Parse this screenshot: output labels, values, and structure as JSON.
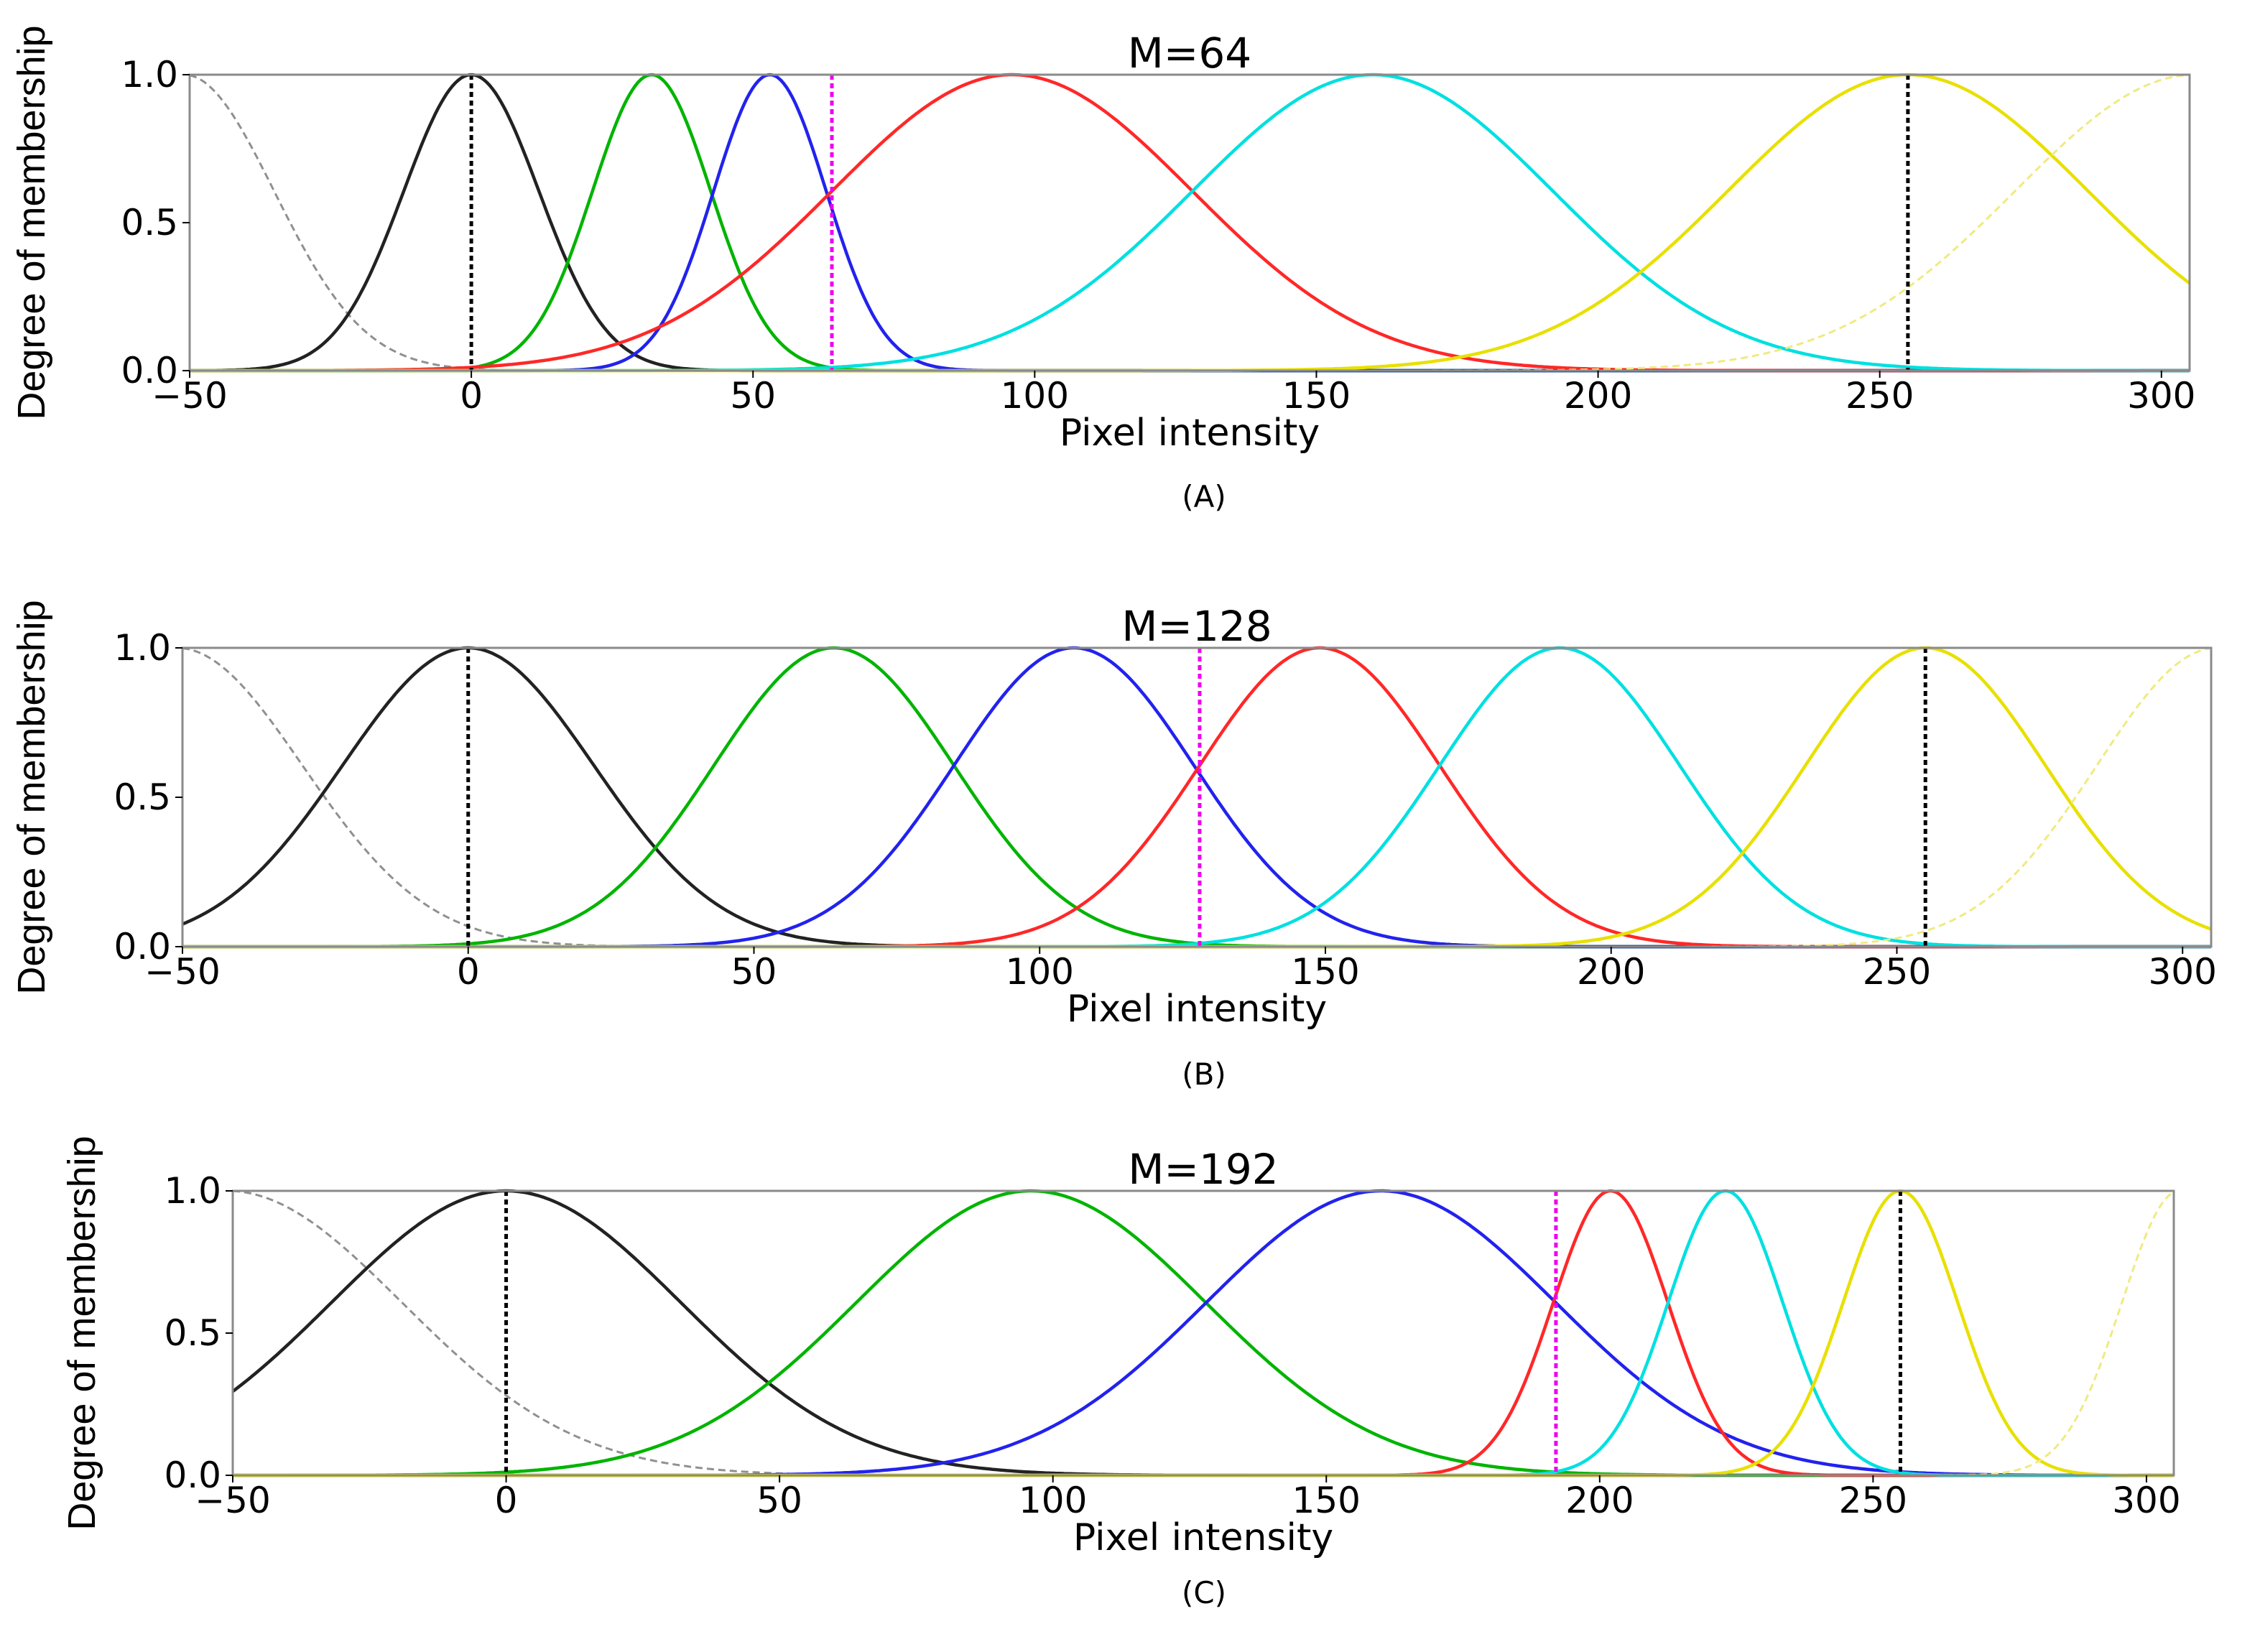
{
  "chart_data": [
    {
      "type": "line",
      "title": "M=64",
      "caption": "(A)",
      "xlabel": "Pixel intensity",
      "ylabel": "Degree of membership",
      "xlim": [
        -50,
        305
      ],
      "ylim": [
        0,
        1
      ],
      "xticks": [
        -50,
        0,
        50,
        100,
        150,
        200,
        250,
        300
      ],
      "xtick_labels": [
        "−50",
        "0",
        "50",
        "100",
        "150",
        "200",
        "250",
        "300"
      ],
      "yticks": [
        0,
        0.5,
        1
      ],
      "ytick_labels": [
        "0.0",
        "0.5",
        "1.0"
      ],
      "grid": false,
      "legend": "none",
      "series": [
        {
          "color": "#909090",
          "style": "dashed",
          "center": -51,
          "sigma": 16,
          "peak": 1
        },
        {
          "color": "#222222",
          "style": "solid",
          "center": 0,
          "sigma": 12,
          "peak": 1
        },
        {
          "color": "#00b400",
          "style": "solid",
          "center": 32,
          "sigma": 10.5,
          "peak": 1
        },
        {
          "color": "#2222ee",
          "style": "solid",
          "center": 53,
          "sigma": 10,
          "peak": 1
        },
        {
          "color": "#ff2828",
          "style": "solid",
          "center": 96,
          "sigma": 32,
          "peak": 1
        },
        {
          "color": "#00e0e0",
          "style": "solid",
          "center": 160,
          "sigma": 32,
          "peak": 1
        },
        {
          "color": "#e8e000",
          "style": "solid",
          "center": 255,
          "sigma": 32,
          "peak": 1
        },
        {
          "color": "#f0ea80",
          "style": "dashed",
          "center": 306,
          "sigma": 32,
          "peak": 1
        }
      ],
      "vlines": [
        {
          "x": 0,
          "color": "#000000",
          "style": "dotted"
        },
        {
          "x": 64,
          "color": "#ee00ee",
          "style": "dotted"
        },
        {
          "x": 255,
          "color": "#000000",
          "style": "dotted"
        }
      ]
    },
    {
      "type": "line",
      "title": "M=128",
      "caption": "(B)",
      "xlabel": "Pixel intensity",
      "ylabel": "Degree of membership",
      "xlim": [
        -50,
        305
      ],
      "ylim": [
        0,
        1
      ],
      "xticks": [
        -50,
        0,
        50,
        100,
        150,
        200,
        250,
        300
      ],
      "xtick_labels": [
        "−50",
        "0",
        "50",
        "100",
        "150",
        "200",
        "250",
        "300"
      ],
      "yticks": [
        0,
        0.5,
        1
      ],
      "ytick_labels": [
        "0.0",
        "0.5",
        "1.0"
      ],
      "grid": false,
      "legend": "none",
      "series": [
        {
          "color": "#909090",
          "style": "dashed",
          "center": -51,
          "sigma": 22,
          "peak": 1
        },
        {
          "color": "#222222",
          "style": "solid",
          "center": 0,
          "sigma": 22,
          "peak": 1
        },
        {
          "color": "#00b400",
          "style": "solid",
          "center": 64,
          "sigma": 21,
          "peak": 1
        },
        {
          "color": "#2222ee",
          "style": "solid",
          "center": 106,
          "sigma": 21,
          "peak": 1
        },
        {
          "color": "#ff2828",
          "style": "solid",
          "center": 149,
          "sigma": 21,
          "peak": 1
        },
        {
          "color": "#00e0e0",
          "style": "solid",
          "center": 191,
          "sigma": 21,
          "peak": 1
        },
        {
          "color": "#e8e000",
          "style": "solid",
          "center": 255,
          "sigma": 21,
          "peak": 1
        },
        {
          "color": "#f0ea80",
          "style": "dashed",
          "center": 306,
          "sigma": 21,
          "peak": 1
        }
      ],
      "vlines": [
        {
          "x": 0,
          "color": "#000000",
          "style": "dotted"
        },
        {
          "x": 128,
          "color": "#ee00ee",
          "style": "dotted"
        },
        {
          "x": 255,
          "color": "#000000",
          "style": "dotted"
        }
      ]
    },
    {
      "type": "line",
      "title": "M=192",
      "caption": "(C)",
      "xlabel": "Pixel intensity",
      "ylabel": "Degree of membership",
      "xlim": [
        -50,
        305
      ],
      "ylim": [
        0,
        1
      ],
      "xticks": [
        -50,
        0,
        50,
        100,
        150,
        200,
        250,
        300
      ],
      "xtick_labels": [
        "−50",
        "0",
        "50",
        "100",
        "150",
        "200",
        "250",
        "300"
      ],
      "yticks": [
        0,
        0.5,
        1
      ],
      "ytick_labels": [
        "0.0",
        "0.5",
        "1.0"
      ],
      "grid": false,
      "legend": "none",
      "series": [
        {
          "color": "#909090",
          "style": "dashed",
          "center": -51,
          "sigma": 32,
          "peak": 1
        },
        {
          "color": "#222222",
          "style": "solid",
          "center": 0,
          "sigma": 32,
          "peak": 1
        },
        {
          "color": "#00b400",
          "style": "solid",
          "center": 96,
          "sigma": 32,
          "peak": 1
        },
        {
          "color": "#2222ee",
          "style": "solid",
          "center": 160,
          "sigma": 32,
          "peak": 1
        },
        {
          "color": "#ff2828",
          "style": "solid",
          "center": 202,
          "sigma": 10.5,
          "peak": 1
        },
        {
          "color": "#00e0e0",
          "style": "solid",
          "center": 223,
          "sigma": 10.5,
          "peak": 1
        },
        {
          "color": "#e8e000",
          "style": "solid",
          "center": 255,
          "sigma": 10.5,
          "peak": 1
        },
        {
          "color": "#f0ea80",
          "style": "dashed",
          "center": 306,
          "sigma": 10.5,
          "peak": 1
        }
      ],
      "vlines": [
        {
          "x": 0,
          "color": "#000000",
          "style": "dotted"
        },
        {
          "x": 192,
          "color": "#ee00ee",
          "style": "dotted"
        },
        {
          "x": 255,
          "color": "#000000",
          "style": "dotted"
        }
      ]
    }
  ]
}
